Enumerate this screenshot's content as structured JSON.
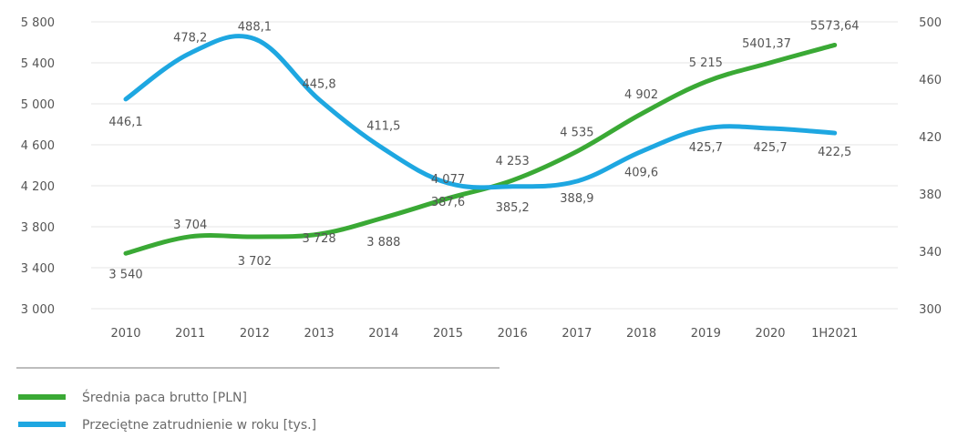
{
  "chart_data": {
    "type": "line",
    "categories": [
      "2010",
      "2011",
      "2012",
      "2013",
      "2014",
      "2015",
      "2016",
      "2017",
      "2018",
      "2019",
      "2020",
      "1H2021"
    ],
    "series": [
      {
        "name": "Średnia paca brutto [PLN]",
        "axis": "left",
        "color": "#3aa935",
        "values": [
          3540,
          3704,
          3702,
          3728,
          3888,
          4077,
          4253,
          4535,
          4902,
          5215,
          5401.37,
          5573.64
        ],
        "labels": [
          "3 540",
          "3 704",
          "3 702",
          "3 728",
          "3 888",
          "4 077",
          "4 253",
          "4 535",
          "4 902",
          "5 215",
          "5401,37",
          "5573,64"
        ]
      },
      {
        "name": "Przeciętne zatrudnienie w roku [tys.]",
        "axis": "right",
        "color": "#1ea7e1",
        "values": [
          446.1,
          478.2,
          488.1,
          445.8,
          411.5,
          387.6,
          385.2,
          388.9,
          409.6,
          425.7,
          425.7,
          422.5
        ],
        "labels": [
          "446,1",
          "478,2",
          "488,1",
          "445,8",
          "411,5",
          "387,6",
          "385,2",
          "388,9",
          "409,6",
          "425,7",
          "425,7",
          "422,5"
        ]
      }
    ],
    "y_left": {
      "ylim": [
        3000,
        5800
      ],
      "ticks": [
        3000,
        3400,
        3800,
        4200,
        4600,
        5000,
        5400,
        5800
      ],
      "tick_labels": [
        "3 000",
        "3 400",
        "3 800",
        "4 200",
        "4 600",
        "5 000",
        "5 400",
        "5 800"
      ]
    },
    "y_right": {
      "ylim": [
        300,
        500
      ],
      "ticks": [
        300,
        340,
        380,
        420,
        460,
        500
      ],
      "tick_labels": [
        "300",
        "340",
        "380",
        "420",
        "460",
        "500"
      ]
    },
    "grid": true,
    "legend_position": "bottom-left"
  }
}
